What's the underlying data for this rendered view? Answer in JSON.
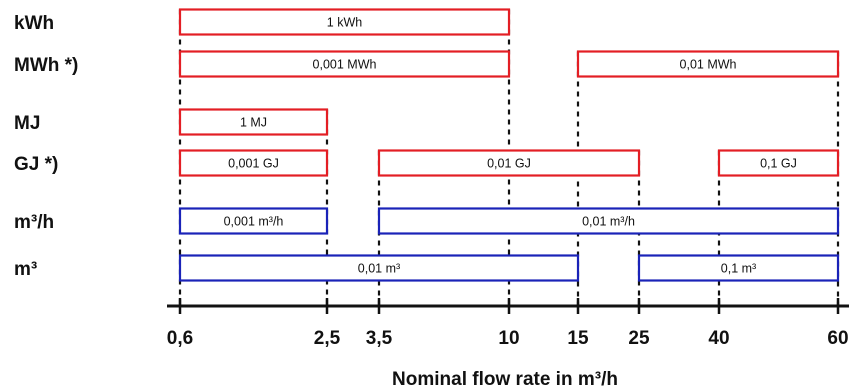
{
  "axis": {
    "title": "Nominal flow rate in m³/h",
    "ticks": [
      {
        "value": 0.6,
        "label": "0,6"
      },
      {
        "value": 2.5,
        "label": "2,5"
      },
      {
        "value": 3.5,
        "label": "3,5"
      },
      {
        "value": 10,
        "label": "10"
      },
      {
        "value": 15,
        "label": "15"
      },
      {
        "value": 25,
        "label": "25"
      },
      {
        "value": 40,
        "label": "40"
      },
      {
        "value": 60,
        "label": "60"
      }
    ]
  },
  "colors": {
    "energy": "#e31e24",
    "volume": "#1a23b8",
    "axis": "#111111",
    "guide": "#111111"
  },
  "rows": [
    {
      "label": "kWh",
      "kind": "energy",
      "bars": [
        {
          "from": 0.6,
          "to": 10,
          "label": "1 kWh"
        }
      ]
    },
    {
      "label": "MWh *)",
      "kind": "energy",
      "bars": [
        {
          "from": 0.6,
          "to": 10,
          "label": "0,001 MWh"
        },
        {
          "from": 15,
          "to": 60,
          "label": "0,01 MWh"
        }
      ]
    },
    {
      "label": "MJ",
      "kind": "energy",
      "bars": [
        {
          "from": 0.6,
          "to": 2.5,
          "label": "1 MJ"
        }
      ]
    },
    {
      "label": "GJ *)",
      "kind": "energy",
      "bars": [
        {
          "from": 0.6,
          "to": 2.5,
          "label": "0,001 GJ"
        },
        {
          "from": 3.5,
          "to": 25,
          "label": "0,01 GJ"
        },
        {
          "from": 40,
          "to": 60,
          "label": "0,1 GJ"
        }
      ]
    },
    {
      "label": "m³/h",
      "kind": "volume",
      "bars": [
        {
          "from": 0.6,
          "to": 2.5,
          "label": "0,001 m³/h"
        },
        {
          "from": 3.5,
          "to": 60,
          "label": "0,01 m³/h"
        }
      ]
    },
    {
      "label": "m³",
      "kind": "volume",
      "bars": [
        {
          "from": 0.6,
          "to": 15,
          "label": "0,01 m³"
        },
        {
          "from": 25,
          "to": 60,
          "label": "0,1 m³"
        }
      ]
    }
  ]
}
